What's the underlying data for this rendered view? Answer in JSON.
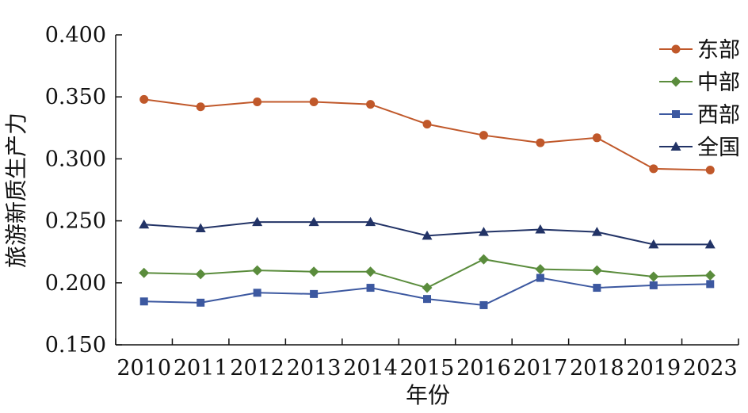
{
  "chart_data": {
    "type": "line",
    "title": "",
    "xlabel": "年份",
    "ylabel": "旅游新质生产力",
    "categories": [
      "2010",
      "2011",
      "2012",
      "2013",
      "2014",
      "2015",
      "2016",
      "2017",
      "2018",
      "2019",
      "2023"
    ],
    "y_ticks": [
      "0.150",
      "0.200",
      "0.250",
      "0.300",
      "0.350",
      "0.400"
    ],
    "ylim": [
      0.15,
      0.4
    ],
    "grid": false,
    "legend_position": "top-right",
    "series": [
      {
        "name": "东部",
        "marker": "circle",
        "color": "#c0582a",
        "values": [
          0.348,
          0.342,
          0.346,
          0.346,
          0.344,
          0.328,
          0.319,
          0.313,
          0.317,
          0.292,
          0.291
        ]
      },
      {
        "name": "中部",
        "marker": "diamond",
        "color": "#5a8c3c",
        "values": [
          0.208,
          0.207,
          0.21,
          0.209,
          0.209,
          0.196,
          0.219,
          0.211,
          0.21,
          0.205,
          0.206
        ]
      },
      {
        "name": "西部",
        "marker": "square",
        "color": "#3c58a0",
        "values": [
          0.185,
          0.184,
          0.192,
          0.191,
          0.196,
          0.187,
          0.182,
          0.204,
          0.196,
          0.198,
          0.199
        ]
      },
      {
        "name": "全国",
        "marker": "triangle",
        "color": "#223366",
        "values": [
          0.247,
          0.244,
          0.249,
          0.249,
          0.249,
          0.238,
          0.241,
          0.243,
          0.241,
          0.231,
          0.231
        ]
      }
    ]
  }
}
